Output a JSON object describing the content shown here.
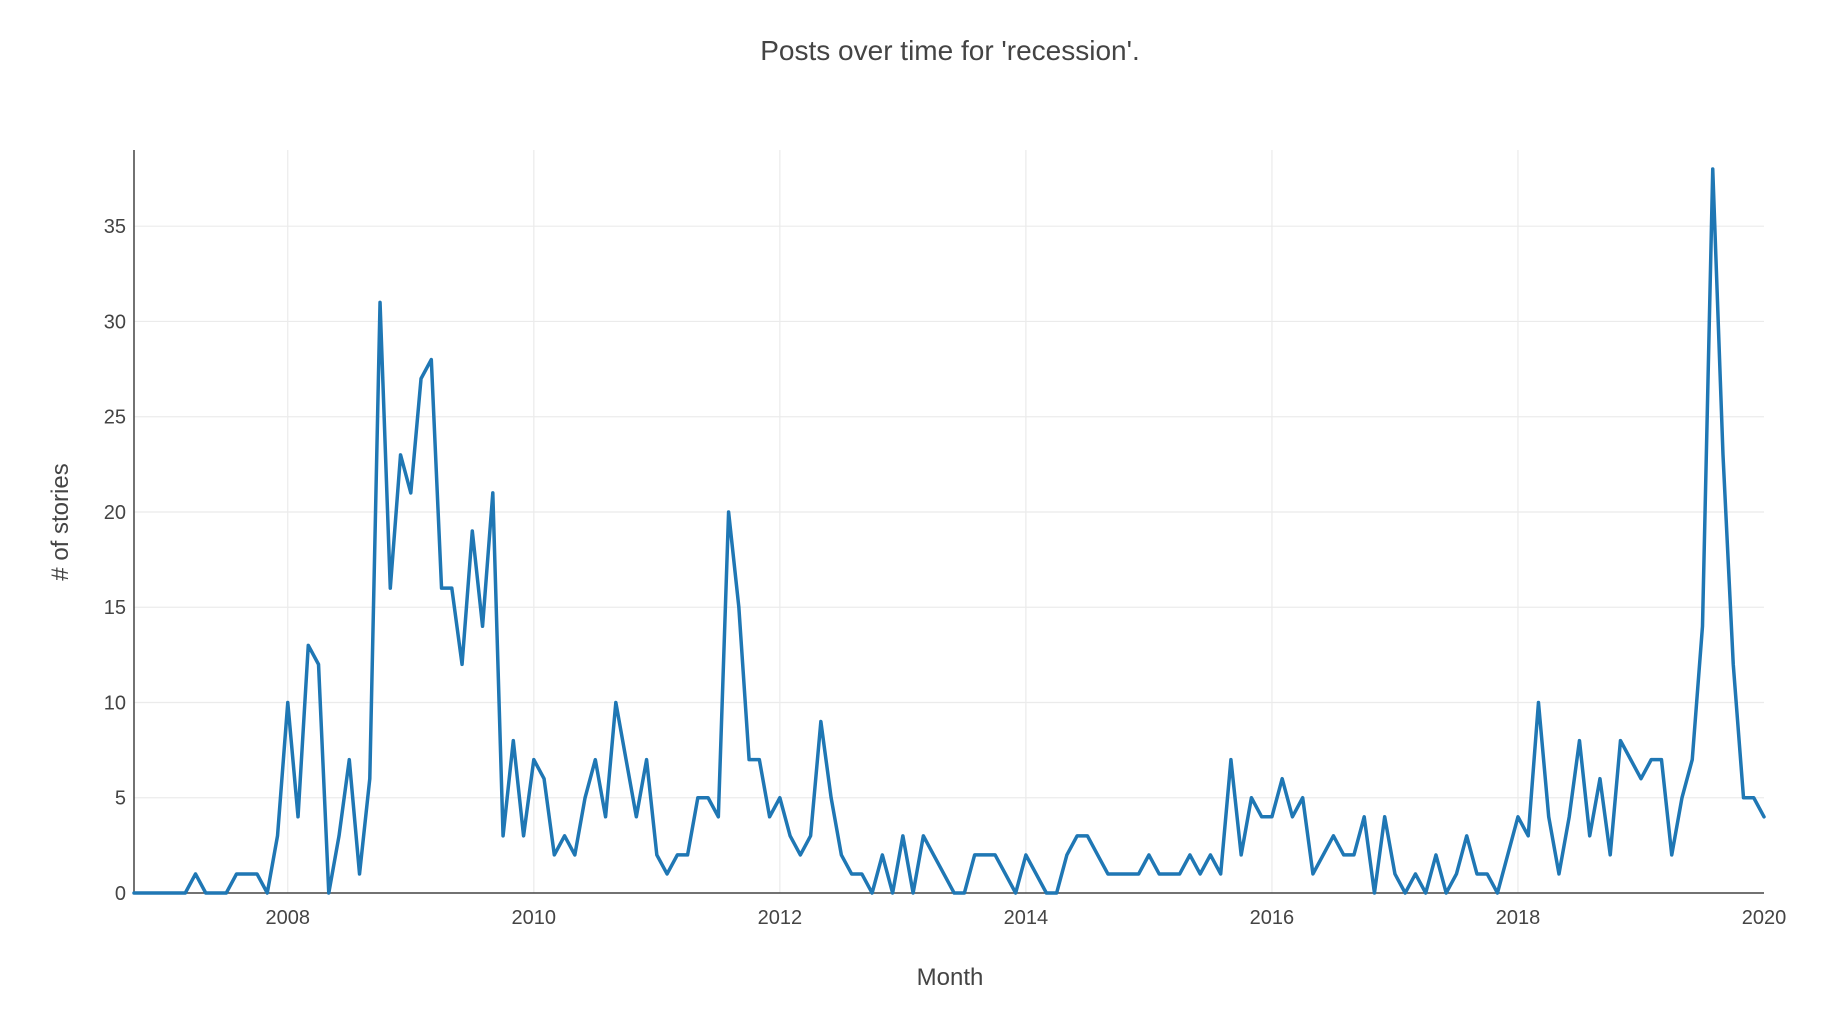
{
  "chart_data": {
    "type": "line",
    "title": "Posts over time for 'recession'.",
    "xlabel": "Month",
    "ylabel": "# of stories",
    "xlim": [
      "2006-10-01",
      "2020-01-01"
    ],
    "ylim": [
      0,
      39
    ],
    "grid": true,
    "legend": "none",
    "x_ticks": [
      "2008",
      "2010",
      "2012",
      "2014",
      "2016",
      "2018",
      "2020"
    ],
    "y_ticks": [
      "0",
      "5",
      "10",
      "15",
      "20",
      "25",
      "30",
      "35"
    ],
    "series": [
      {
        "color": "#1f77b4",
        "x": [
          "2006-10",
          "2006-11",
          "2006-12",
          "2007-01",
          "2007-02",
          "2007-03",
          "2007-04",
          "2007-05",
          "2007-06",
          "2007-07",
          "2007-08",
          "2007-09",
          "2007-10",
          "2007-11",
          "2007-12",
          "2008-01",
          "2008-02",
          "2008-03",
          "2008-04",
          "2008-05",
          "2008-06",
          "2008-07",
          "2008-08",
          "2008-09",
          "2008-10",
          "2008-11",
          "2008-12",
          "2009-01",
          "2009-02",
          "2009-03",
          "2009-04",
          "2009-05",
          "2009-06",
          "2009-07",
          "2009-08",
          "2009-09",
          "2009-10",
          "2009-11",
          "2009-12",
          "2010-01",
          "2010-02",
          "2010-03",
          "2010-04",
          "2010-05",
          "2010-06",
          "2010-07",
          "2010-08",
          "2010-09",
          "2010-10",
          "2010-11",
          "2010-12",
          "2011-01",
          "2011-02",
          "2011-03",
          "2011-04",
          "2011-05",
          "2011-06",
          "2011-07",
          "2011-08",
          "2011-09",
          "2011-10",
          "2011-11",
          "2011-12",
          "2012-01",
          "2012-02",
          "2012-03",
          "2012-04",
          "2012-05",
          "2012-06",
          "2012-07",
          "2012-08",
          "2012-09",
          "2012-10",
          "2012-11",
          "2012-12",
          "2013-01",
          "2013-02",
          "2013-03",
          "2013-04",
          "2013-05",
          "2013-06",
          "2013-07",
          "2013-08",
          "2013-09",
          "2013-10",
          "2013-11",
          "2013-12",
          "2014-01",
          "2014-02",
          "2014-03",
          "2014-04",
          "2014-05",
          "2014-06",
          "2014-07",
          "2014-08",
          "2014-09",
          "2014-10",
          "2014-11",
          "2014-12",
          "2015-01",
          "2015-02",
          "2015-03",
          "2015-04",
          "2015-05",
          "2015-06",
          "2015-07",
          "2015-08",
          "2015-09",
          "2015-10",
          "2015-11",
          "2015-12",
          "2016-01",
          "2016-02",
          "2016-03",
          "2016-04",
          "2016-05",
          "2016-06",
          "2016-07",
          "2016-08",
          "2016-09",
          "2016-10",
          "2016-11",
          "2016-12",
          "2017-01",
          "2017-02",
          "2017-03",
          "2017-04",
          "2017-05",
          "2017-06",
          "2017-07",
          "2017-08",
          "2017-09",
          "2017-10",
          "2017-11",
          "2017-12",
          "2018-01",
          "2018-02",
          "2018-03",
          "2018-04",
          "2018-05",
          "2018-06",
          "2018-07",
          "2018-08",
          "2018-09",
          "2018-10",
          "2018-11",
          "2018-12",
          "2019-01",
          "2019-02",
          "2019-03",
          "2019-04",
          "2019-05",
          "2019-06",
          "2019-07",
          "2019-08",
          "2019-09",
          "2019-10",
          "2019-11",
          "2019-12",
          "2020-01"
        ],
        "y": [
          0,
          0,
          0,
          0,
          0,
          0,
          1,
          0,
          0,
          0,
          1,
          1,
          1,
          0,
          3,
          10,
          4,
          13,
          12,
          0,
          3,
          7,
          1,
          6,
          31,
          16,
          23,
          21,
          27,
          28,
          16,
          16,
          12,
          19,
          14,
          21,
          3,
          8,
          3,
          7,
          6,
          2,
          3,
          2,
          5,
          7,
          4,
          10,
          7,
          4,
          7,
          2,
          1,
          2,
          2,
          5,
          5,
          4,
          20,
          15,
          7,
          7,
          4,
          5,
          3,
          2,
          3,
          9,
          5,
          2,
          1,
          1,
          0,
          2,
          0,
          3,
          0,
          3,
          2,
          1,
          0,
          0,
          2,
          2,
          2,
          1,
          0,
          2,
          1,
          0,
          0,
          2,
          3,
          3,
          2,
          1,
          1,
          1,
          1,
          2,
          1,
          1,
          1,
          2,
          1,
          2,
          1,
          7,
          2,
          5,
          4,
          4,
          6,
          4,
          5,
          1,
          2,
          3,
          2,
          2,
          4,
          0,
          4,
          1,
          0,
          1,
          0,
          2,
          0,
          1,
          3,
          1,
          1,
          0,
          2,
          4,
          3,
          10,
          4,
          1,
          4,
          8,
          3,
          6,
          2,
          8,
          7,
          6,
          7,
          7,
          2,
          5,
          7,
          14,
          38,
          23,
          12,
          5,
          5,
          4
        ]
      }
    ]
  }
}
